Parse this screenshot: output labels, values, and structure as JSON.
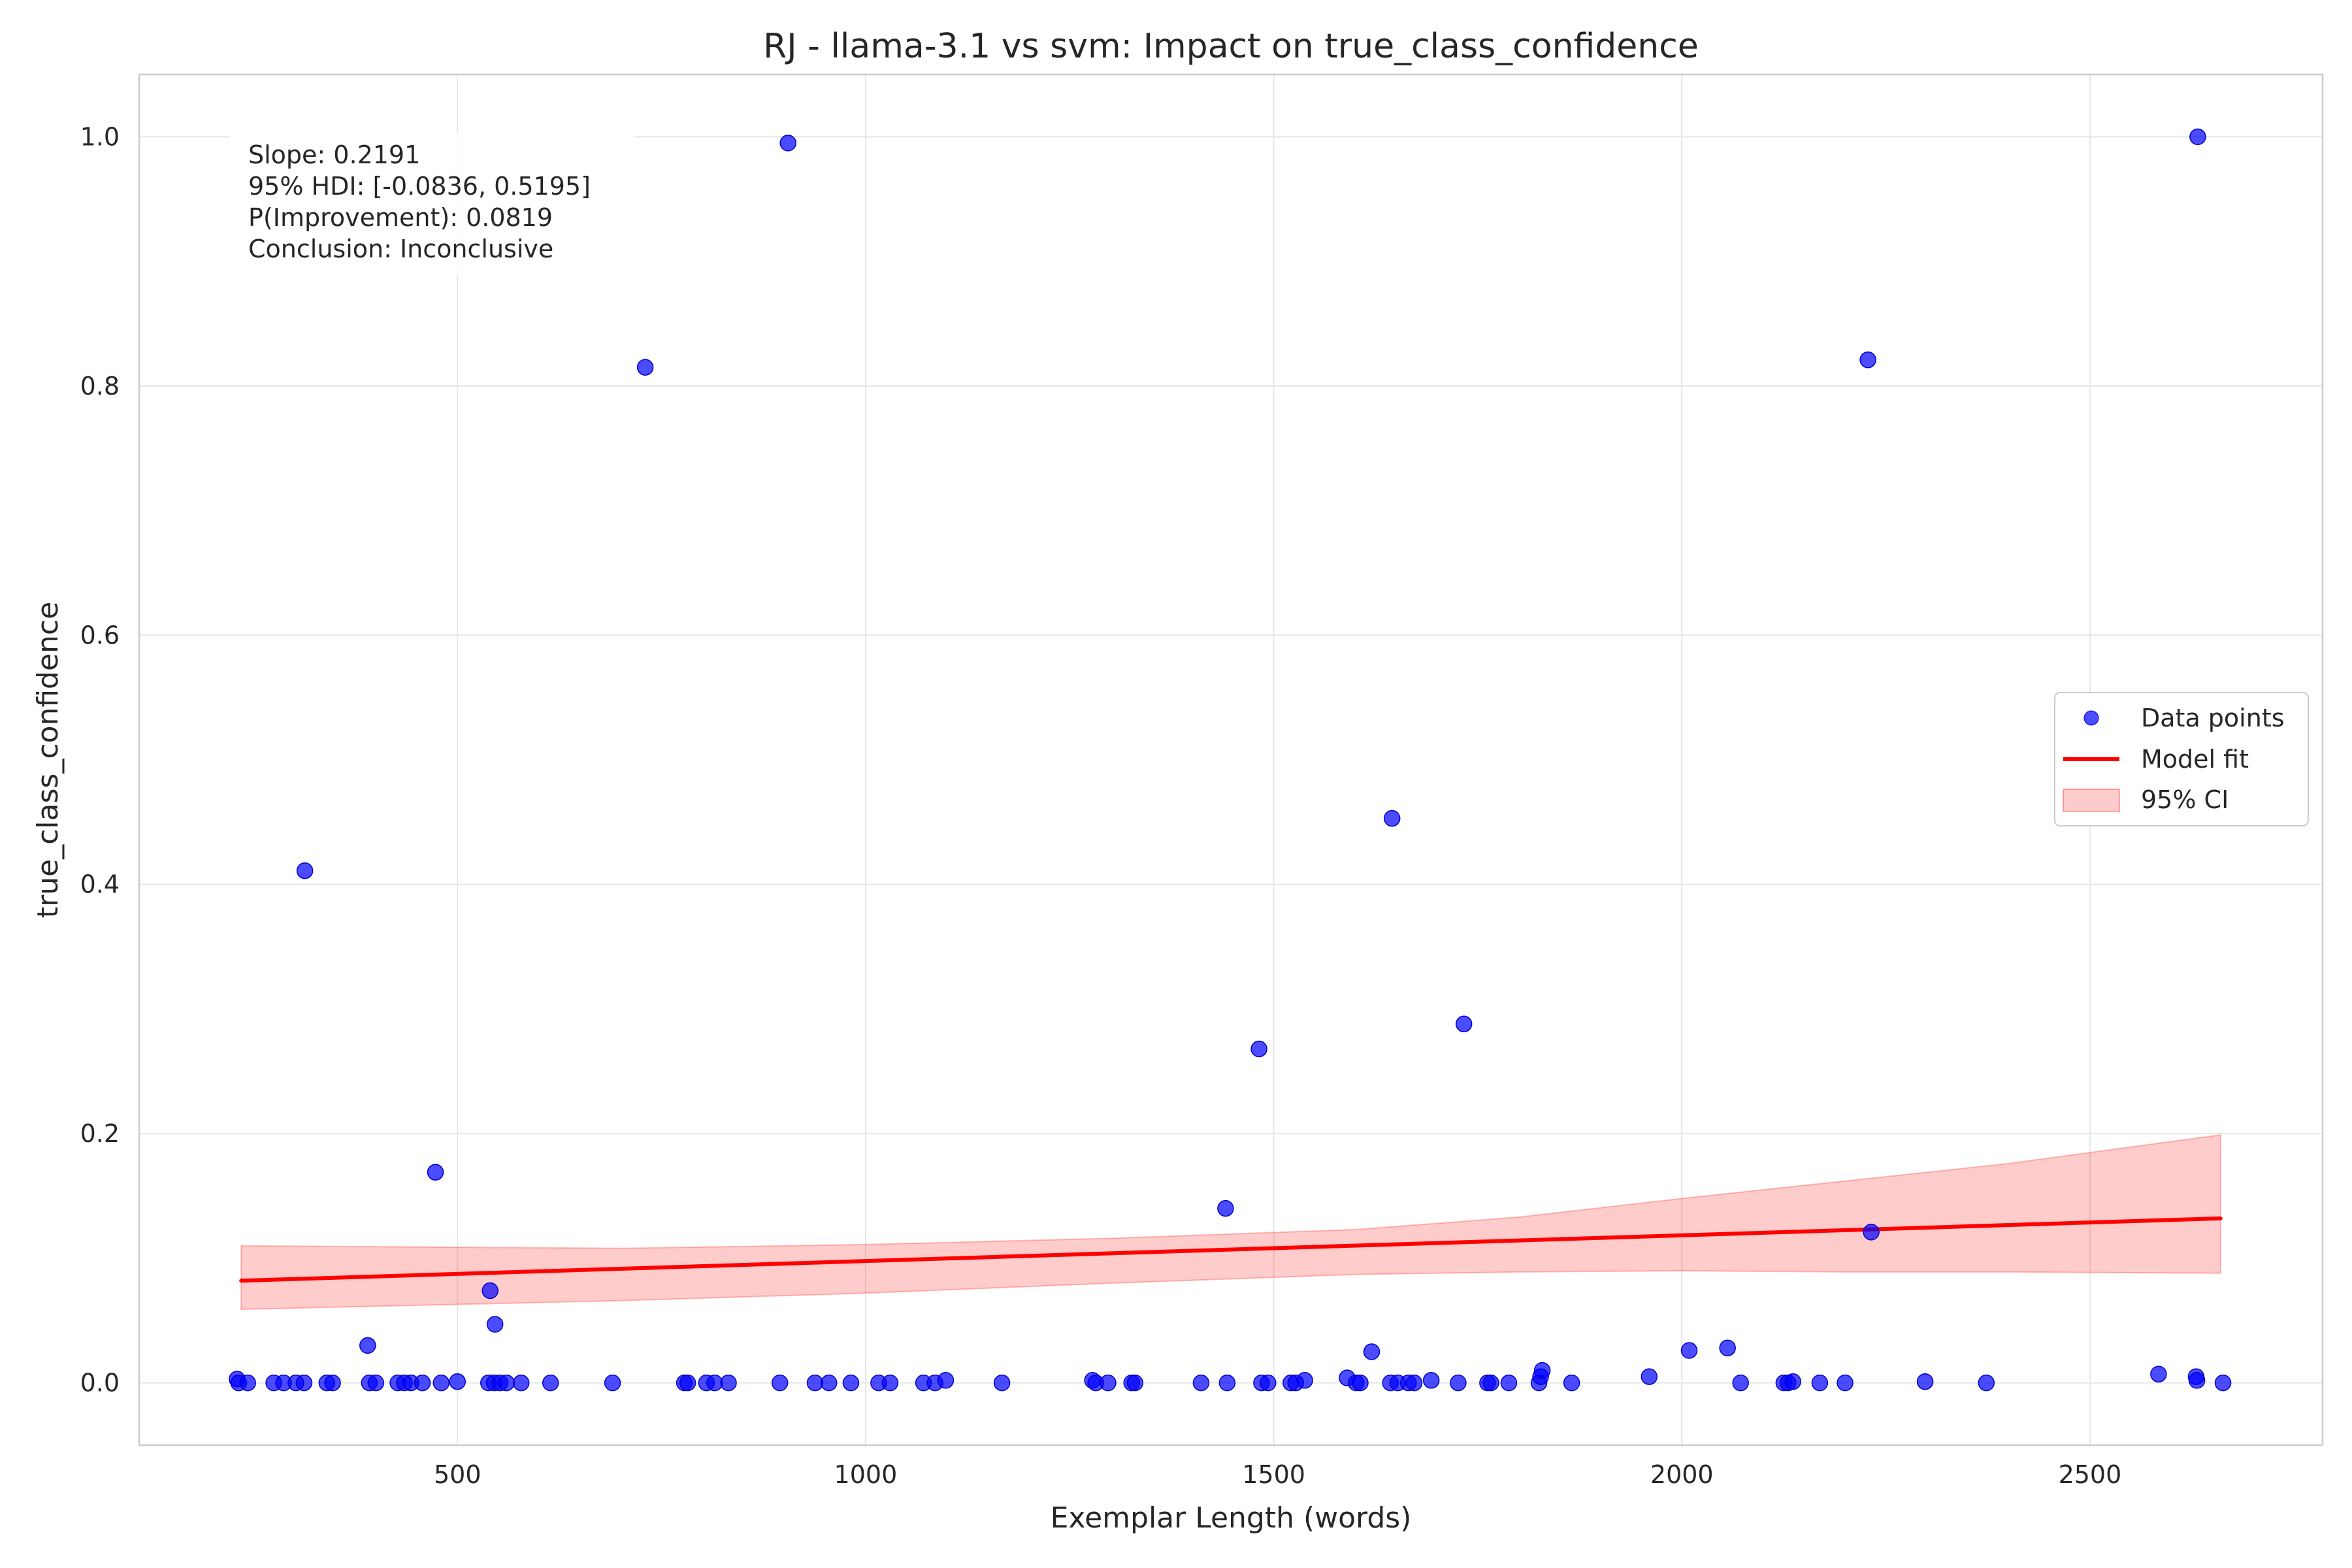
{
  "chart_data": {
    "type": "scatter",
    "title": "RJ - llama-3.1 vs svm: Impact on true_class_confidence",
    "xlabel": "Exemplar Length (words)",
    "ylabel": "true_class_confidence",
    "xlim": [
      110,
      2785
    ],
    "ylim": [
      -0.05,
      1.05
    ],
    "x_ticks": [
      500,
      1000,
      1500,
      2000,
      2500
    ],
    "x_tick_labels": [
      "500",
      "1000",
      "1500",
      "2000",
      "2500"
    ],
    "y_ticks": [
      0.0,
      0.2,
      0.4,
      0.6,
      0.8,
      1.0
    ],
    "y_tick_labels": [
      "0.0",
      "0.2",
      "0.4",
      "0.6",
      "0.8",
      "1.0"
    ],
    "grid": true,
    "legend_position": "center-right",
    "annotation": [
      "Slope: 0.2191",
      "95% HDI: [-0.0836, 0.5195]",
      "P(Improvement): 0.0819",
      "Conclusion: Inconclusive"
    ],
    "series": [
      {
        "name": "Data points",
        "kind": "scatter",
        "color": "#0000ff",
        "points": [
          [
            230,
            0.003
          ],
          [
            232,
            0.0
          ],
          [
            243,
            0.0
          ],
          [
            275,
            0.0
          ],
          [
            287,
            0.0
          ],
          [
            302,
            0.0
          ],
          [
            312,
            0.0
          ],
          [
            313,
            0.411
          ],
          [
            340,
            0.0
          ],
          [
            347,
            0.0
          ],
          [
            390,
            0.03
          ],
          [
            392,
            0.0
          ],
          [
            400,
            0.0
          ],
          [
            427,
            0.0
          ],
          [
            435,
            0.0
          ],
          [
            443,
            0.0
          ],
          [
            457,
            0.0
          ],
          [
            473,
            0.169
          ],
          [
            480,
            0.0
          ],
          [
            500,
            0.001
          ],
          [
            538,
            0.0
          ],
          [
            540,
            0.074
          ],
          [
            545,
            0.0
          ],
          [
            546,
            0.047
          ],
          [
            552,
            0.0
          ],
          [
            560,
            0.0
          ],
          [
            578,
            0.0
          ],
          [
            614,
            0.0
          ],
          [
            690,
            0.0
          ],
          [
            730,
            0.815
          ],
          [
            778,
            0.0
          ],
          [
            782,
            0.0
          ],
          [
            805,
            0.0
          ],
          [
            815,
            0.0
          ],
          [
            832,
            0.0
          ],
          [
            895,
            0.0
          ],
          [
            905,
            0.995
          ],
          [
            938,
            0.0
          ],
          [
            955,
            0.0
          ],
          [
            982,
            0.0
          ],
          [
            1016,
            0.0
          ],
          [
            1030,
            0.0
          ],
          [
            1071,
            0.0
          ],
          [
            1085,
            0.0
          ],
          [
            1098,
            0.002
          ],
          [
            1167,
            0.0
          ],
          [
            1278,
            0.002
          ],
          [
            1282,
            0.0
          ],
          [
            1297,
            0.0
          ],
          [
            1326,
            0.0
          ],
          [
            1330,
            0.0
          ],
          [
            1411,
            0.0
          ],
          [
            1441,
            0.14
          ],
          [
            1443,
            0.0
          ],
          [
            1482,
            0.268
          ],
          [
            1485,
            0.0
          ],
          [
            1493,
            0.0
          ],
          [
            1521,
            0.0
          ],
          [
            1527,
            0.0
          ],
          [
            1538,
            0.002
          ],
          [
            1590,
            0.004
          ],
          [
            1601,
            0.0
          ],
          [
            1606,
            0.0
          ],
          [
            1620,
            0.025
          ],
          [
            1643,
            0.0
          ],
          [
            1645,
            0.453
          ],
          [
            1652,
            0.0
          ],
          [
            1665,
            0.0
          ],
          [
            1672,
            0.0
          ],
          [
            1693,
            0.002
          ],
          [
            1726,
            0.0
          ],
          [
            1733,
            0.288
          ],
          [
            1762,
            0.0
          ],
          [
            1766,
            0.0
          ],
          [
            1788,
            0.0
          ],
          [
            1825,
            0.0
          ],
          [
            1827,
            0.005
          ],
          [
            1829,
            0.01
          ],
          [
            1865,
            0.0
          ],
          [
            1960,
            0.005
          ],
          [
            2009,
            0.026
          ],
          [
            2056,
            0.028
          ],
          [
            2072,
            0.0
          ],
          [
            2125,
            0.0
          ],
          [
            2130,
            0.0
          ],
          [
            2136,
            0.001
          ],
          [
            2169,
            0.0
          ],
          [
            2200,
            0.0
          ],
          [
            2228,
            0.821
          ],
          [
            2232,
            0.121
          ],
          [
            2298,
            0.001
          ],
          [
            2373,
            0.0
          ],
          [
            2584,
            0.007
          ],
          [
            2630,
            0.005
          ],
          [
            2631,
            0.002
          ],
          [
            2632,
            1.0
          ],
          [
            2663,
            0.0
          ]
        ]
      },
      {
        "name": "Model fit",
        "kind": "line",
        "color": "#ff0000",
        "x": [
          235,
          2660
        ],
        "y": [
          0.082,
          0.132
        ]
      },
      {
        "name": "95% CI",
        "kind": "band",
        "color": "#ff0000",
        "x": [
          235,
          700,
          1000,
          1300,
          1600,
          1800,
          2000,
          2200,
          2400,
          2660
        ],
        "lower": [
          0.059,
          0.066,
          0.072,
          0.08,
          0.087,
          0.089,
          0.09,
          0.089,
          0.089,
          0.088
        ],
        "upper": [
          0.11,
          0.108,
          0.111,
          0.116,
          0.123,
          0.133,
          0.148,
          0.162,
          0.176,
          0.199
        ]
      }
    ]
  }
}
